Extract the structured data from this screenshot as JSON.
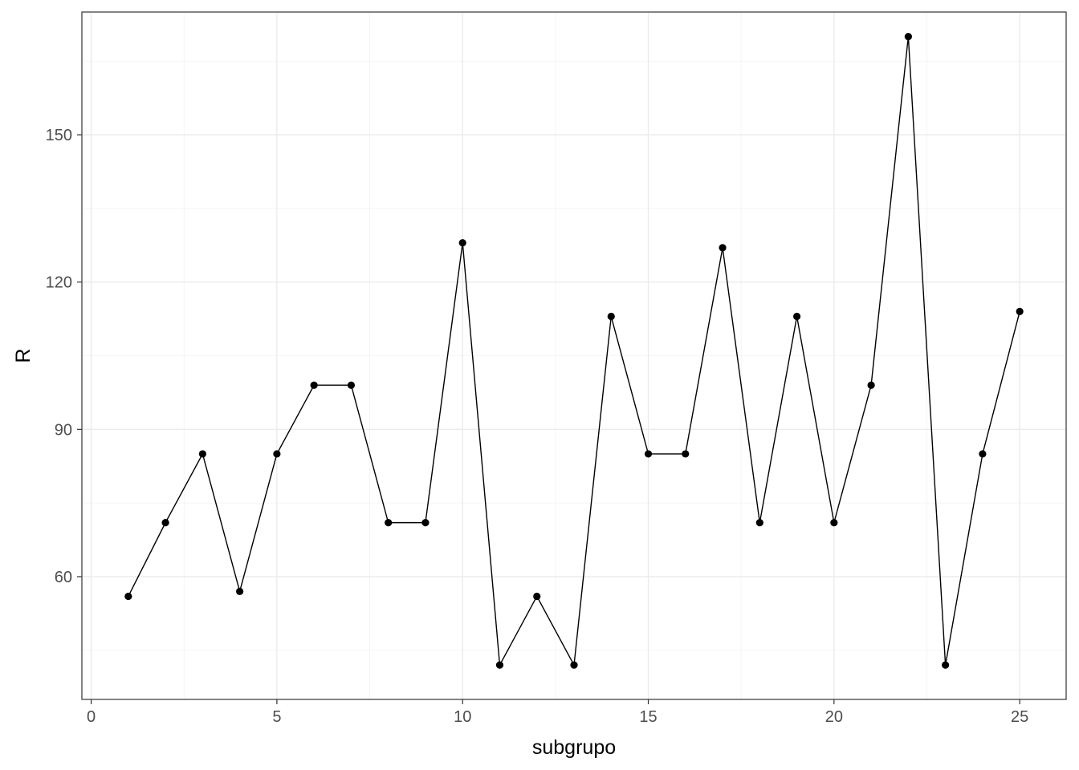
{
  "chart_data": {
    "type": "line",
    "xlabel": "subgrupo",
    "ylabel": "R",
    "xlim": [
      -0.25,
      26.25
    ],
    "ylim": [
      35,
      175
    ],
    "x_ticks": [
      0,
      5,
      10,
      15,
      20,
      25
    ],
    "y_ticks": [
      60,
      90,
      120,
      150
    ],
    "x_tick_labels": [
      "0",
      "5",
      "10",
      "15",
      "20",
      "25"
    ],
    "y_tick_labels": [
      "60",
      "90",
      "120",
      "150"
    ],
    "x_minor": [
      2.5,
      7.5,
      12.5,
      17.5,
      22.5
    ],
    "y_minor": [
      45,
      75,
      105,
      135,
      165
    ],
    "grid": true,
    "legend": "none",
    "line_color": "#000000",
    "series": [
      {
        "x": [
          1,
          2,
          3,
          4,
          5,
          6,
          7,
          8,
          9,
          10,
          11,
          12,
          13,
          14,
          15,
          16,
          17,
          18,
          19,
          20,
          21,
          22,
          23,
          24,
          25
        ],
        "values": [
          56,
          71,
          85,
          57,
          85,
          99,
          99,
          71,
          71,
          128,
          42,
          56,
          42,
          113,
          85,
          85,
          127,
          71,
          113,
          71,
          99,
          170,
          42,
          85,
          114
        ]
      }
    ]
  }
}
